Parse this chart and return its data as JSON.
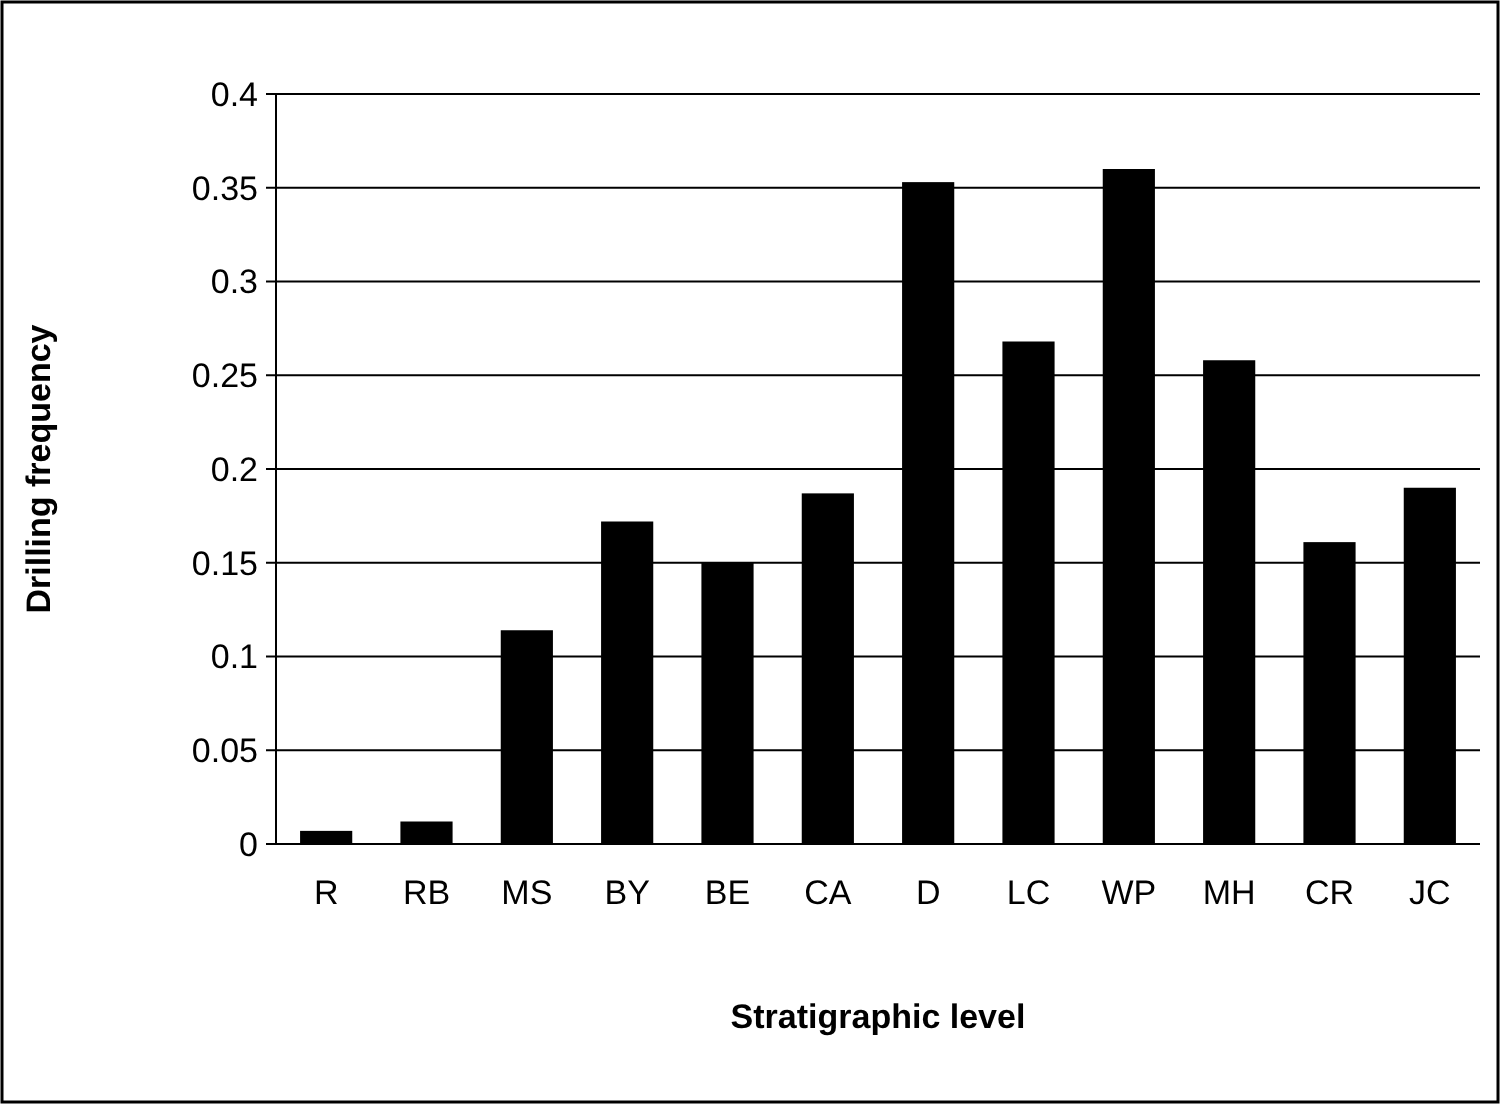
{
  "chart_data": {
    "type": "bar",
    "xlabel": "Stratigraphic level",
    "ylabel": "Drilling frequency",
    "categories": [
      "R",
      "RB",
      "MS",
      "BY",
      "BE",
      "CA",
      "D",
      "LC",
      "WP",
      "MH",
      "CR",
      "JC"
    ],
    "values": [
      0.007,
      0.012,
      0.114,
      0.172,
      0.15,
      0.187,
      0.353,
      0.268,
      0.36,
      0.258,
      0.161,
      0.19
    ],
    "color": "#000000",
    "ylim": [
      0,
      0.4
    ],
    "yticks": [
      0,
      0.05,
      0.1,
      0.15,
      0.2,
      0.25,
      0.3,
      0.35,
      0.4
    ],
    "grid": "y"
  }
}
